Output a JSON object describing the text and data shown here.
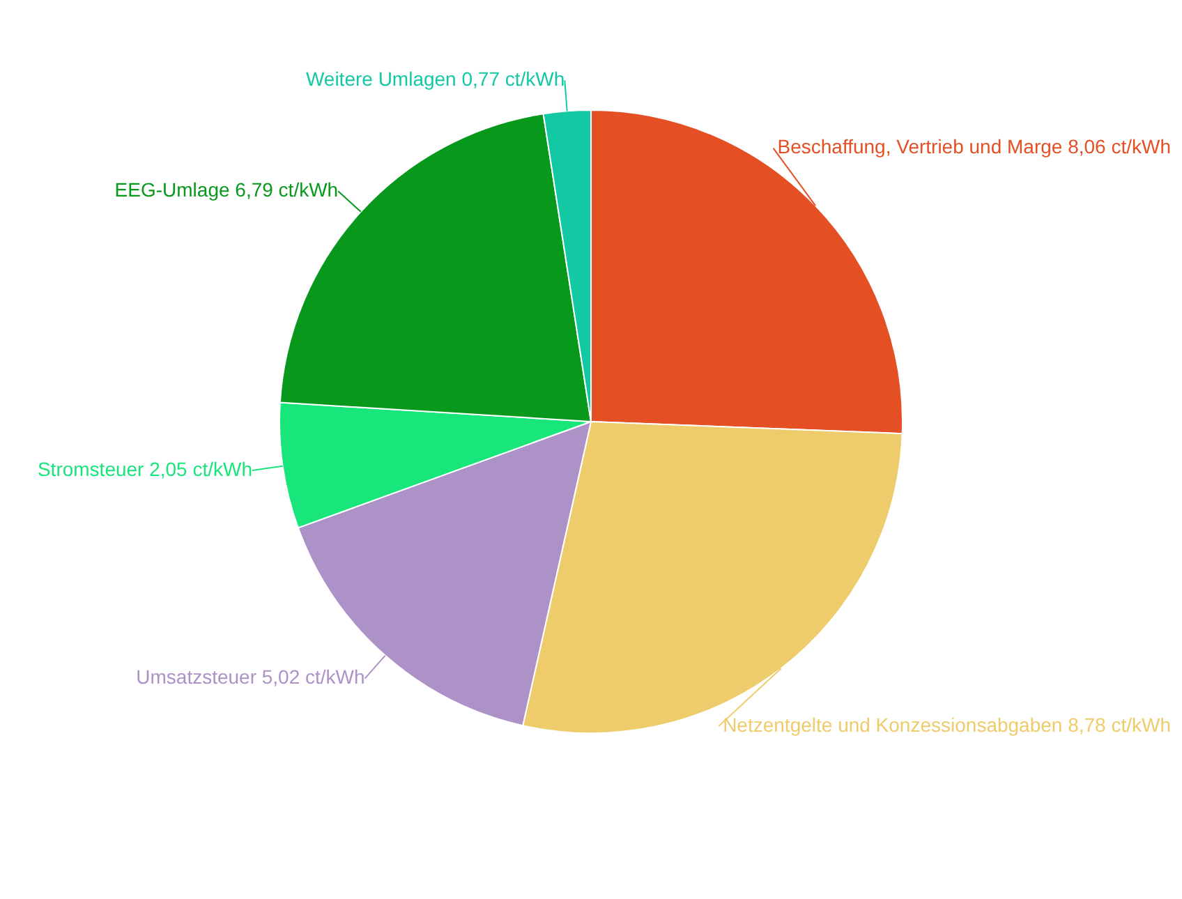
{
  "chart_data": {
    "type": "pie",
    "categories": [
      "Beschaffung, Vertrieb und Marge",
      "Netzentgelte und Konzessionsabgaben",
      "Umsatzsteuer",
      "Stromsteuer",
      "EEG-Umlage",
      "Weitere Umlagen"
    ],
    "values": [
      8.06,
      8.78,
      5.02,
      2.05,
      6.79,
      0.77
    ],
    "value_labels": [
      "8,06 ct/kWh",
      "8,78 ct/kWh",
      "5,02 ct/kWh",
      "2,05 ct/kWh",
      "6,79 ct/kWh",
      "0,77 ct/kWh"
    ],
    "colors": [
      "#e44f24",
      "#eecb6b",
      "#ad92c8",
      "#19e67a",
      "#07981c",
      "#13c9a3"
    ],
    "legend": false
  }
}
